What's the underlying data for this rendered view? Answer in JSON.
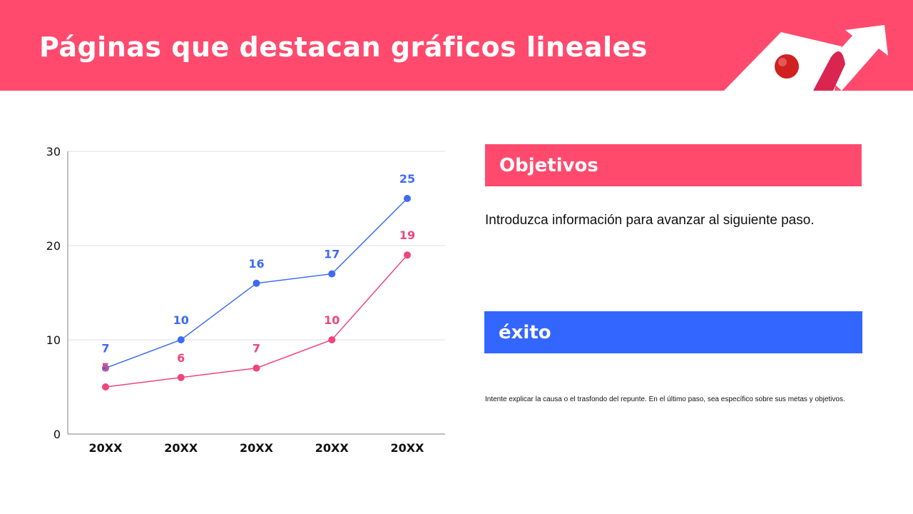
{
  "header": {
    "title": "Páginas que destacan gráficos lineales"
  },
  "objetivos": {
    "heading": "Objetivos",
    "body": "Introduzca información para avanzar al siguiente paso."
  },
  "exito": {
    "heading": "éxito",
    "body": "Intente explicar la causa o el trasfondo del repunte. En el último paso, sea específico sobre sus metas y objetivos."
  },
  "colors": {
    "accent_pink": "#FF4A6E",
    "accent_blue": "#3366FF",
    "series_blue": "#3D6BF5",
    "series_pink": "#F0457A"
  },
  "decoration": {
    "icon": "upward-arrow-with-ball-icon"
  },
  "chart_data": {
    "type": "line",
    "categories": [
      "20XX",
      "20XX",
      "20XX",
      "20XX",
      "20XX"
    ],
    "ylim": [
      0,
      30
    ],
    "yticks": [
      0,
      10,
      20,
      30
    ],
    "grid": true,
    "series": [
      {
        "values": [
          7,
          10,
          16,
          17,
          25
        ],
        "color": "#3D6BF5"
      },
      {
        "values": [
          5,
          6,
          7,
          10,
          19
        ],
        "color": "#F0457A"
      }
    ],
    "data_labels": true
  }
}
